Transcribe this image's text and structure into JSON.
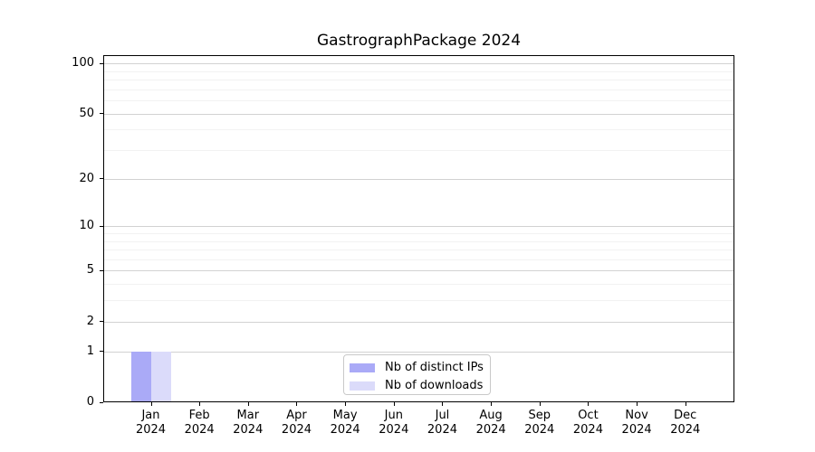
{
  "chart_data": {
    "type": "bar",
    "title": "GastrographPackage 2024",
    "categories": [
      "Jan 2024",
      "Feb 2024",
      "Mar 2024",
      "Apr 2024",
      "May 2024",
      "Jun 2024",
      "Jul 2024",
      "Aug 2024",
      "Sep 2024",
      "Oct 2024",
      "Nov 2024",
      "Dec 2024"
    ],
    "series": [
      {
        "name": "Nb of distinct IPs",
        "color": "#aaaaf7",
        "values": [
          1,
          0,
          0,
          0,
          0,
          0,
          0,
          0,
          0,
          0,
          0,
          0
        ]
      },
      {
        "name": "Nb of downloads",
        "color": "#dbdbfa",
        "values": [
          1,
          0,
          0,
          0,
          0,
          0,
          0,
          0,
          0,
          0,
          0,
          0
        ]
      }
    ],
    "xlabel": "",
    "ylabel": "",
    "y_axis": {
      "scale": "log1p",
      "ticks": [
        100,
        50,
        20,
        10,
        5,
        2,
        1,
        0
      ],
      "minor_ticks": [
        3,
        4,
        6,
        7,
        8,
        9,
        30,
        40,
        60,
        70,
        80,
        90
      ],
      "ylim": [
        0,
        112
      ]
    },
    "legend_position": "lower center",
    "grid": {
      "orientation": "horizontal",
      "major_color": "#d2d2d2",
      "minor_color": "#f2f2f2"
    },
    "colors": {
      "spine": "#000000",
      "text": "#000000",
      "background": "#ffffff",
      "legend_border": "#c9c9c9"
    }
  }
}
